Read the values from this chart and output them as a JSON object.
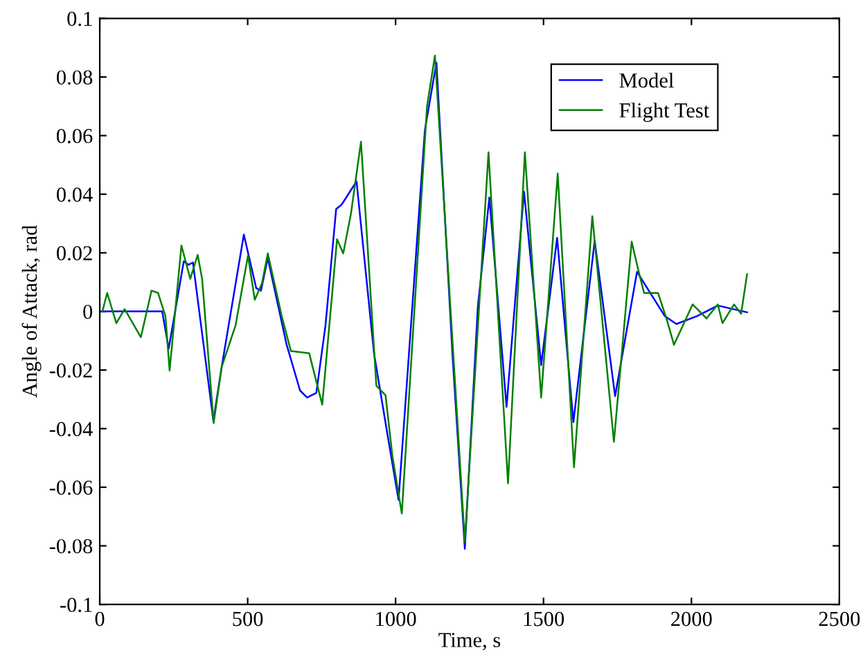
{
  "chart_data": {
    "type": "line",
    "xlabel": "Time, s",
    "ylabel": "Angle of Attack, rad",
    "xlim": [
      0,
      2500
    ],
    "xticks": [
      0,
      500,
      1000,
      1500,
      2000,
      2500
    ],
    "ylim": [
      -0.1,
      0.1
    ],
    "yticks": [
      {
        "value": -0.1,
        "label": "-0.1"
      },
      {
        "value": -0.08,
        "label": "-0.08"
      },
      {
        "value": -0.06,
        "label": "-0.06"
      },
      {
        "value": -0.04,
        "label": "-0.04"
      },
      {
        "value": -0.02,
        "label": "-0.02"
      },
      {
        "value": 0,
        "label": "0"
      },
      {
        "value": 0.02,
        "label": "0.02"
      },
      {
        "value": 0.04,
        "label": "0.04"
      },
      {
        "value": 0.06,
        "label": "0.06"
      },
      {
        "value": 0.08,
        "label": "0.08"
      },
      {
        "value": 0.1,
        "label": "0.1"
      }
    ],
    "grid": false,
    "legend": "top right",
    "marker": "none",
    "line_style": "solid",
    "series": [
      {
        "name": "Model",
        "color": "#0000ff",
        "x": [
          0,
          211,
          233,
          284,
          300,
          315,
          384,
          412,
          487,
          529,
          545,
          568,
          631,
          677,
          701,
          732,
          763,
          799,
          818,
          868,
          927,
          974,
          1010,
          1099,
          1138,
          1192,
          1234,
          1278,
          1317,
          1375,
          1434,
          1492,
          1546,
          1601,
          1673,
          1742,
          1816,
          1910,
          1949,
          2019,
          2089,
          2188
        ],
        "values": [
          0,
          0,
          -0.0127,
          0.0171,
          0.0159,
          0.0167,
          -0.0373,
          -0.019,
          0.0262,
          0.0079,
          0.0071,
          0.0182,
          -0.0111,
          -0.027,
          -0.0294,
          -0.0278,
          -0.0048,
          0.0349,
          0.0365,
          0.0444,
          -0.0143,
          -0.0429,
          -0.0643,
          0.0619,
          0.0849,
          -0.0143,
          -0.081,
          0.0016,
          0.0389,
          -0.0326,
          0.0409,
          -0.0183,
          0.0251,
          -0.0378,
          0.0241,
          -0.0289,
          0.0135,
          -0.0016,
          -0.0043,
          -0.0016,
          0.002,
          -0.0003
        ]
      },
      {
        "name": "Flight Test",
        "color": "#008000",
        "x": [
          9,
          25,
          56,
          84,
          139,
          175,
          197,
          222,
          236,
          276,
          306,
          331,
          346,
          385,
          412,
          459,
          501,
          524,
          548,
          568,
          615,
          646,
          708,
          724,
          752,
          802,
          823,
          849,
          883,
          935,
          966,
          989,
          1021,
          1106,
          1133,
          1234,
          1314,
          1380,
          1437,
          1492,
          1548,
          1603,
          1665,
          1738,
          1798,
          1820,
          1840,
          1887,
          1918,
          1941,
          2004,
          2051,
          2089,
          2105,
          2144,
          2168,
          2188
        ],
        "values": [
          0,
          0.0063,
          -0.004,
          0.0008,
          -0.0088,
          0.0071,
          0.0063,
          -0.0016,
          -0.0202,
          0.0225,
          0.0111,
          0.0193,
          0.0111,
          -0.0381,
          -0.019,
          -0.0048,
          0.019,
          0.004,
          0.0095,
          0.0198,
          -0.0016,
          -0.0135,
          -0.0143,
          -0.0207,
          -0.0318,
          0.0246,
          0.0198,
          0.0333,
          0.0579,
          -0.0254,
          -0.0286,
          -0.0492,
          -0.069,
          0.0698,
          0.0873,
          -0.0786,
          0.0543,
          -0.0587,
          0.0543,
          -0.0294,
          0.0471,
          -0.0532,
          0.0325,
          -0.0445,
          0.0238,
          0.0143,
          0.0063,
          0.0063,
          -0.0032,
          -0.0114,
          0.0024,
          -0.0024,
          0.0024,
          -0.004,
          0.0024,
          -0.0008,
          0.0127
        ]
      }
    ]
  }
}
